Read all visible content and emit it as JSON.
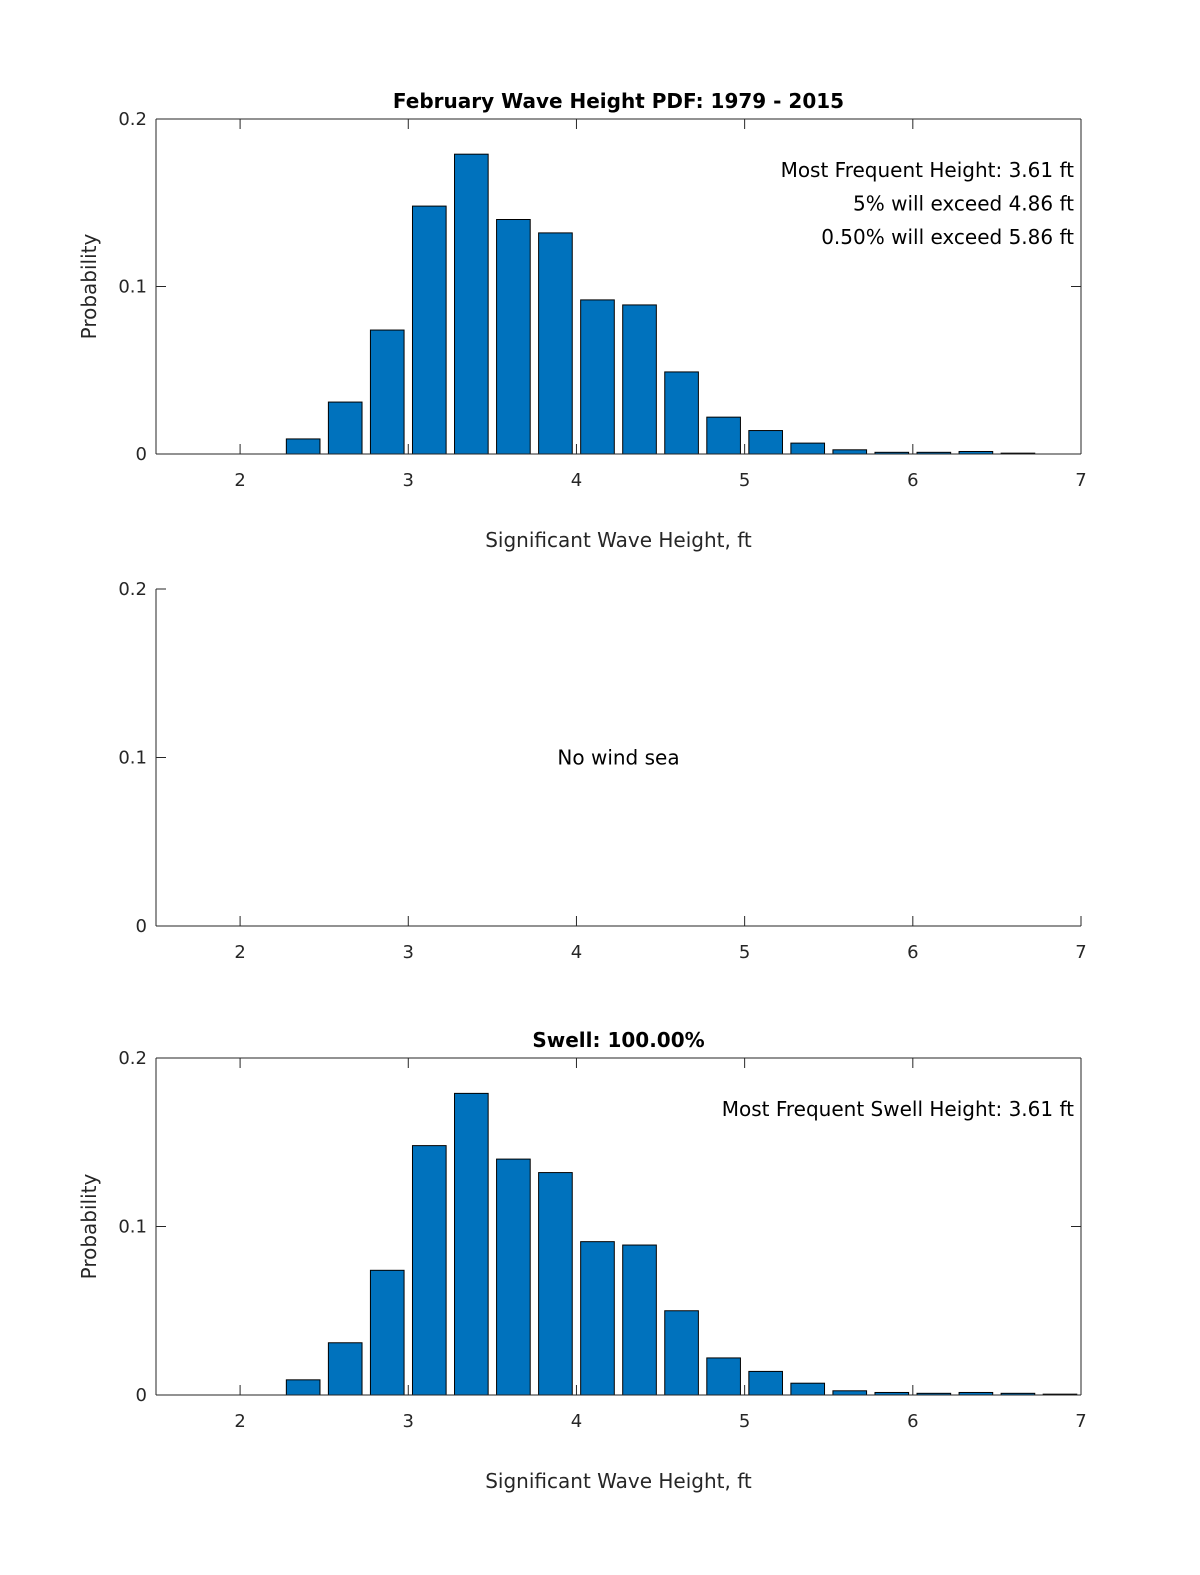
{
  "colors": {
    "bar_fill": "#0072BD",
    "bar_edge": "#000000",
    "axis": "#262626"
  },
  "chart_data": [
    {
      "type": "bar",
      "title": "February Wave Height PDF: 1979 - 2015",
      "xlabel": "Significant Wave Height, ft",
      "ylabel": "Probability",
      "xlim": [
        1.5,
        7
      ],
      "ylim": [
        0,
        0.2
      ],
      "xticks": [
        "2",
        "3",
        "4",
        "5",
        "6",
        "7"
      ],
      "yticks": [
        "0",
        "0.1",
        "0.2"
      ],
      "x": [
        2.125,
        2.375,
        2.625,
        2.875,
        3.125,
        3.375,
        3.625,
        3.875,
        4.125,
        4.375,
        4.625,
        4.875,
        5.125,
        5.375,
        5.625,
        5.875,
        6.125,
        6.375,
        6.625,
        6.875
      ],
      "values": [
        0,
        0.009,
        0.031,
        0.074,
        0.148,
        0.179,
        0.14,
        0.132,
        0.092,
        0.089,
        0.049,
        0.022,
        0.014,
        0.0065,
        0.0025,
        0.001,
        0.001,
        0.0015,
        0.0005,
        0
      ],
      "annotations": [
        "Most Frequent Height: 3.61 ft",
        "5% will exceed 4.86 ft",
        "0.50% will exceed 5.86 ft"
      ]
    },
    {
      "type": "bar",
      "title": "",
      "xlabel": "",
      "ylabel": "",
      "xlim": [
        1.5,
        7
      ],
      "ylim": [
        0,
        0.2
      ],
      "xticks": [
        "2",
        "3",
        "4",
        "5",
        "6",
        "7"
      ],
      "yticks": [
        "0",
        "0.1",
        "0.2"
      ],
      "x": [],
      "values": [],
      "annotations": [],
      "center_text": "No wind sea"
    },
    {
      "type": "bar",
      "title": "Swell: 100.00%",
      "xlabel": "Significant Wave Height, ft",
      "ylabel": "Probability",
      "xlim": [
        1.5,
        7
      ],
      "ylim": [
        0,
        0.2
      ],
      "xticks": [
        "2",
        "3",
        "4",
        "5",
        "6",
        "7"
      ],
      "yticks": [
        "0",
        "0.1",
        "0.2"
      ],
      "x": [
        2.125,
        2.375,
        2.625,
        2.875,
        3.125,
        3.375,
        3.625,
        3.875,
        4.125,
        4.375,
        4.625,
        4.875,
        5.125,
        5.375,
        5.625,
        5.875,
        6.125,
        6.375,
        6.625,
        6.875
      ],
      "values": [
        0,
        0.009,
        0.031,
        0.074,
        0.148,
        0.179,
        0.14,
        0.132,
        0.091,
        0.089,
        0.05,
        0.022,
        0.014,
        0.007,
        0.0025,
        0.0015,
        0.001,
        0.0015,
        0.001,
        0.0005
      ],
      "annotations": [
        "Most Frequent Swell Height: 3.61 ft"
      ]
    }
  ]
}
